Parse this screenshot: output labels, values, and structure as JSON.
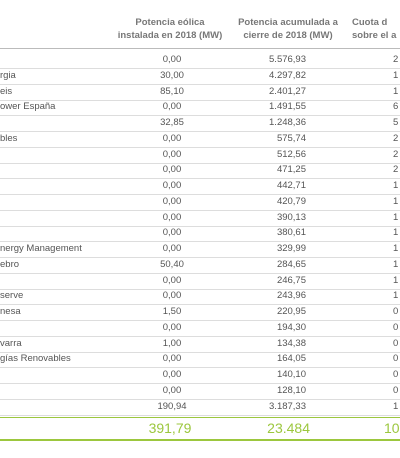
{
  "table": {
    "headers": [
      [
        "Potencia eólica",
        "instalada en 2018 (MW)"
      ],
      [
        "Potencia acumulada a",
        "cierre de 2018 (MW)"
      ],
      [
        "Cuota d",
        "sobre el a"
      ]
    ],
    "rows": [
      [
        null,
        "0,00",
        "5.576,93",
        "2"
      ],
      [
        "rgia",
        "30,00",
        "4.297,82",
        "1"
      ],
      [
        "eis",
        "85,10",
        "2.401,27",
        "1"
      ],
      [
        "ower España",
        "0,00",
        "1.491,55",
        "6"
      ],
      [
        null,
        "32,85",
        "1.248,36",
        "5"
      ],
      [
        "bles",
        "0,00",
        "575,74",
        "2"
      ],
      [
        null,
        "0,00",
        "512,56",
        "2"
      ],
      [
        null,
        "0,00",
        "471,25",
        "2"
      ],
      [
        null,
        "0,00",
        "442,71",
        "1"
      ],
      [
        null,
        "0,00",
        "420,79",
        "1"
      ],
      [
        null,
        "0,00",
        "390,13",
        "1"
      ],
      [
        null,
        "0,00",
        "380,61",
        "1"
      ],
      [
        "nergy Management",
        "0,00",
        "329,99",
        "1"
      ],
      [
        "ebro",
        "50,40",
        "284,65",
        "1"
      ],
      [
        null,
        "0,00",
        "246,75",
        "1"
      ],
      [
        "serve",
        "0,00",
        "243,96",
        "1"
      ],
      [
        "nesa",
        "1,50",
        "220,95",
        "0"
      ],
      [
        null,
        "0,00",
        "194,30",
        "0"
      ],
      [
        "varra",
        "1,00",
        "134,38",
        "0"
      ],
      [
        "gías Renovables",
        "0,00",
        "164,05",
        "0"
      ],
      [
        null,
        "0,00",
        "140,10",
        "0"
      ],
      [
        null,
        "0,00",
        "128,10",
        "0"
      ],
      [
        null,
        "190,94",
        "3.187,33",
        "1"
      ]
    ],
    "total": [
      "391,79",
      "23.484",
      "10"
    ]
  }
}
